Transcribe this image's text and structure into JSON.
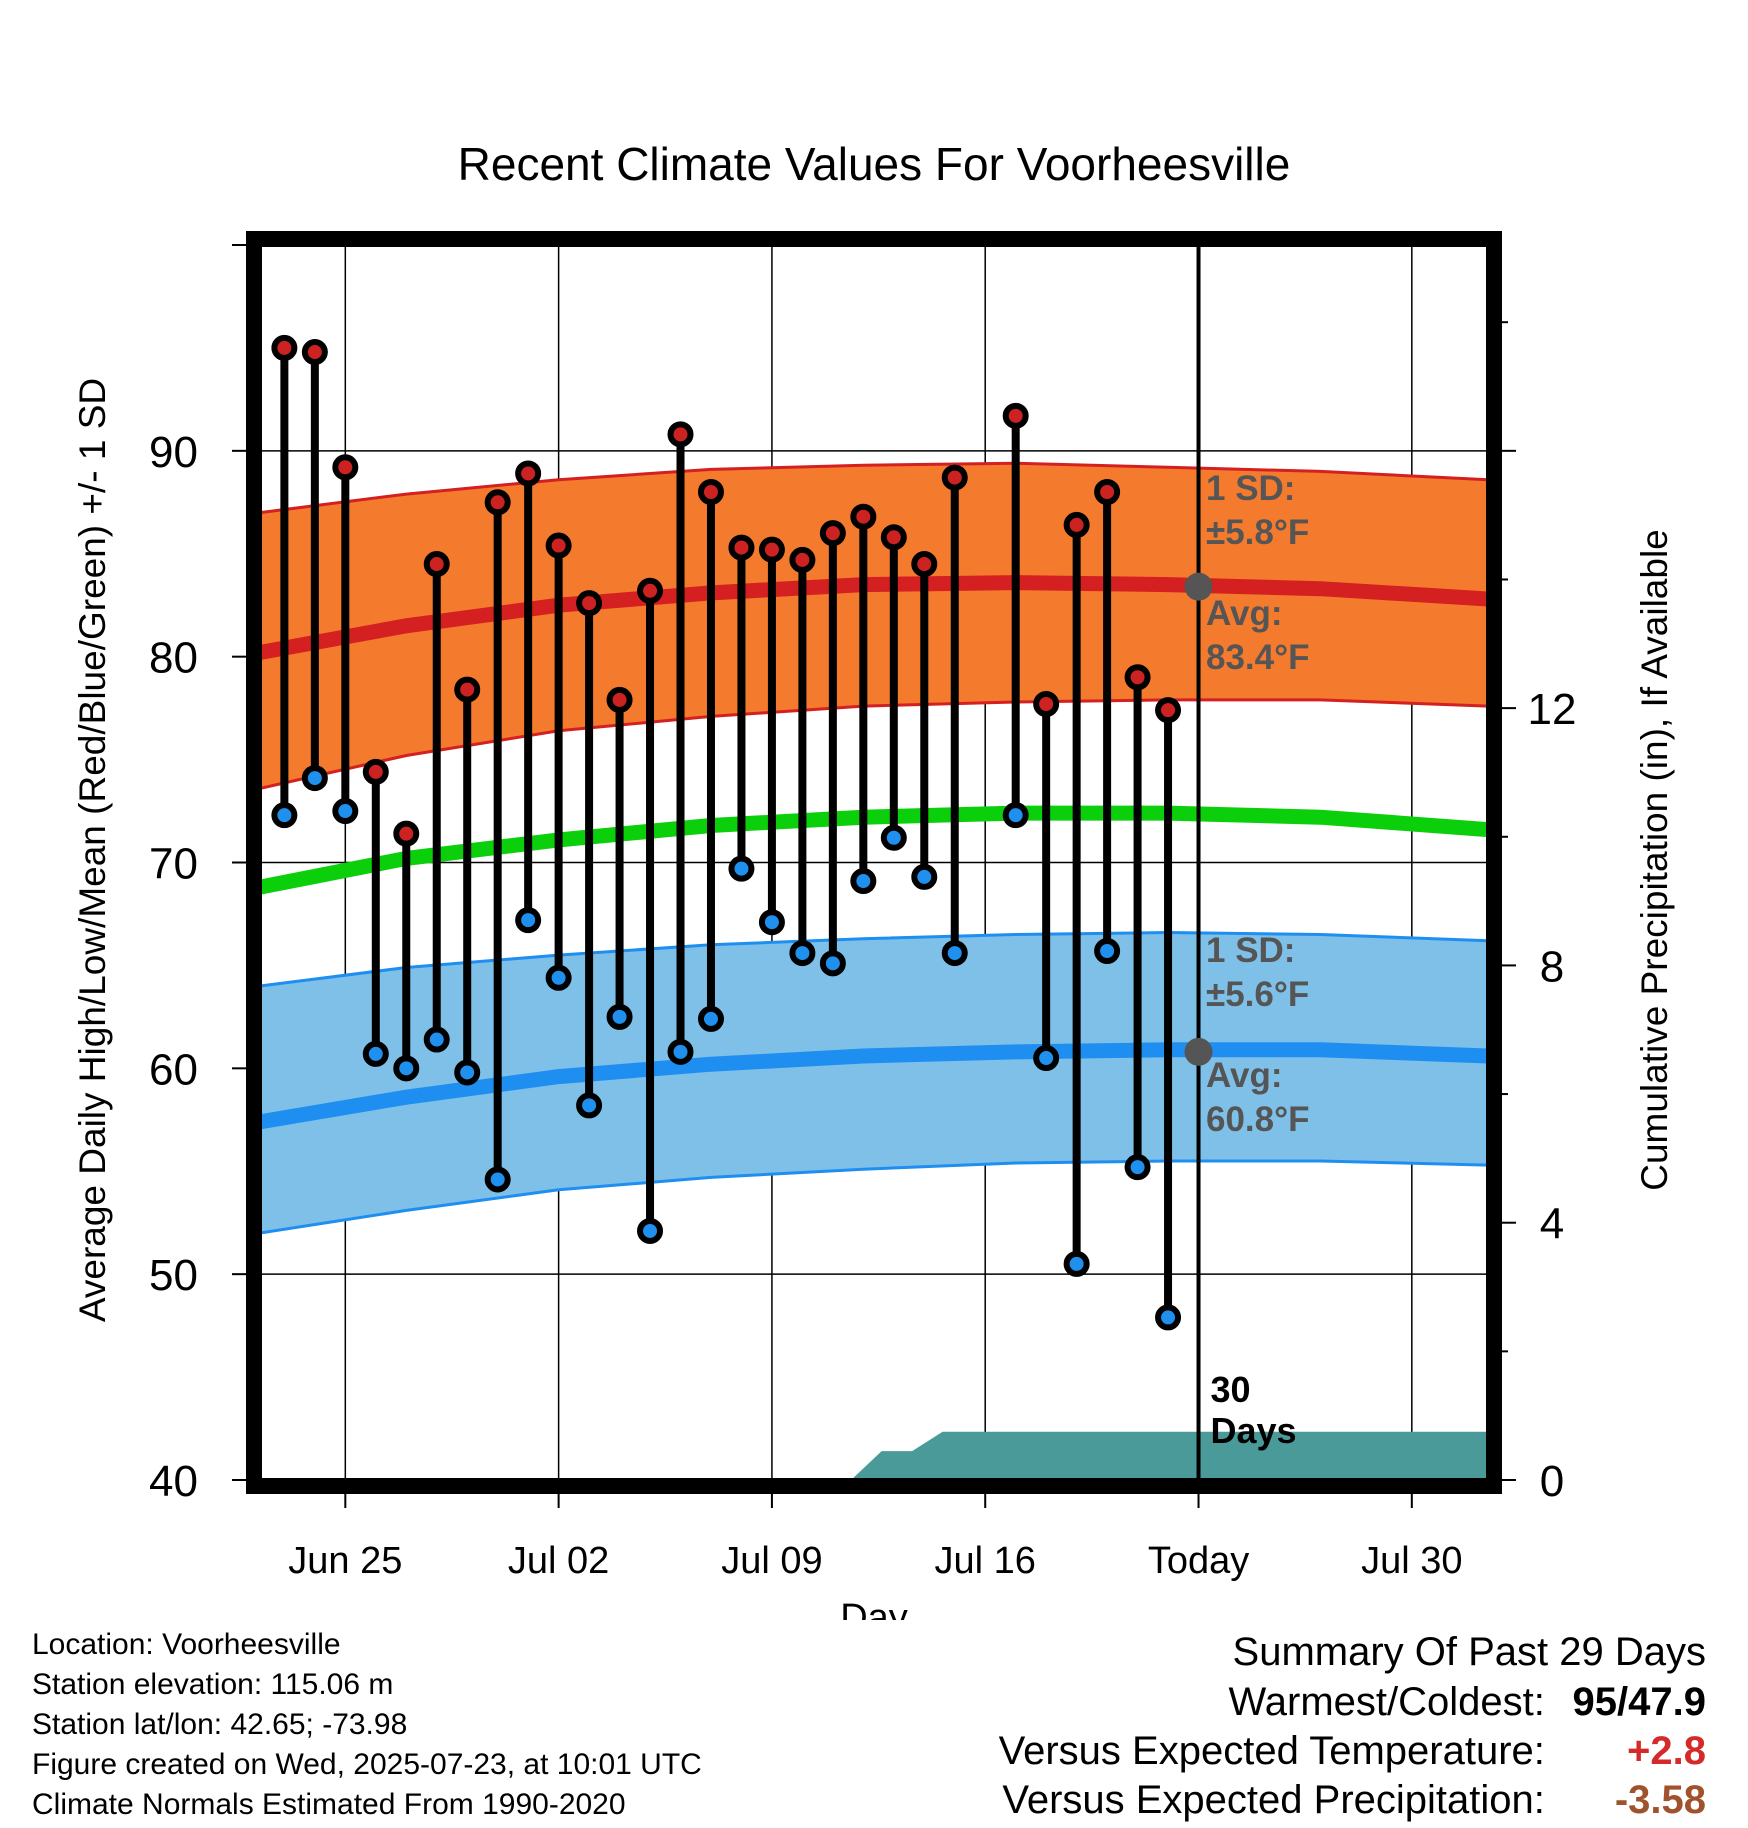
{
  "chart_data": {
    "type": "line",
    "title": "Recent Climate Values For Voorheesville",
    "xlabel": "Day",
    "ylabel": "Average Daily High/Low/Mean (Red/Blue/Green) +/- 1 SD",
    "y2label": "Cumulative Precipitation (in), If Available",
    "ylim": [
      40,
      100
    ],
    "y2lim": [
      0,
      19.2
    ],
    "yticks": [
      "40",
      "50",
      "60",
      "70",
      "80",
      "90"
    ],
    "y2ticks": [
      "0",
      "4",
      "8",
      "12"
    ],
    "xticks": [
      {
        "day": 3,
        "label": "Jun 25"
      },
      {
        "day": 10,
        "label": "Jul 02"
      },
      {
        "day": 17,
        "label": "Jul 09"
      },
      {
        "day": 24,
        "label": "Jul 16"
      },
      {
        "day": 31,
        "label": "Today"
      },
      {
        "day": 38,
        "label": "Jul 30"
      }
    ],
    "xlim": [
      0.2,
      40.5
    ],
    "today_day": 31,
    "today_label": "30 Days",
    "observed": {
      "days": [
        1,
        2,
        3,
        4,
        5,
        6,
        7,
        8,
        9,
        10,
        11,
        12,
        13,
        14,
        15,
        16,
        17,
        18,
        19,
        20,
        21,
        22,
        23,
        24,
        25,
        26,
        27,
        28,
        29,
        30
      ],
      "high": [
        95,
        94.8,
        89.2,
        74.4,
        71.4,
        84.5,
        78.4,
        87.5,
        88.9,
        85.4,
        82.6,
        77.9,
        83.2,
        90.8,
        88,
        85.3,
        85.2,
        84.7,
        86,
        86.8,
        85.8,
        84.5,
        88.7,
        null,
        91.7,
        77.7,
        86.4,
        88,
        79,
        77.4
      ],
      "low": [
        72.3,
        74.1,
        72.5,
        60.7,
        60,
        61.4,
        59.8,
        54.6,
        67.2,
        64.4,
        58.2,
        62.5,
        52.1,
        60.8,
        62.4,
        69.7,
        67.1,
        65.6,
        65.1,
        69.1,
        71.2,
        69.3,
        65.6,
        null,
        72.3,
        60.5,
        50.5,
        65.7,
        55.2,
        47.9
      ]
    },
    "normals": {
      "days": [
        0.2,
        5,
        10,
        15,
        20,
        25,
        30,
        35,
        40.5
      ],
      "high_mean": [
        80.2,
        81.5,
        82.5,
        83.1,
        83.5,
        83.6,
        83.5,
        83.3,
        82.8
      ],
      "high_upper": [
        87.0,
        87.9,
        88.6,
        89.1,
        89.3,
        89.4,
        89.2,
        89.0,
        88.6
      ],
      "high_lower": [
        73.6,
        75.2,
        76.4,
        77.1,
        77.6,
        77.8,
        77.9,
        77.9,
        77.6
      ],
      "mean": [
        68.8,
        70.2,
        71.1,
        71.8,
        72.2,
        72.4,
        72.4,
        72.2,
        71.6
      ],
      "low_mean": [
        57.4,
        58.6,
        59.6,
        60.2,
        60.6,
        60.8,
        60.9,
        60.9,
        60.6
      ],
      "low_upper": [
        64.0,
        64.9,
        65.5,
        66.0,
        66.3,
        66.5,
        66.6,
        66.5,
        66.2
      ],
      "low_lower": [
        52.0,
        53.1,
        54.1,
        54.7,
        55.1,
        55.4,
        55.5,
        55.5,
        55.3
      ]
    },
    "precipitation": {
      "days": [
        19.6,
        20.6,
        21.6,
        22.6,
        40.5
      ],
      "cumulative": [
        0,
        0.45,
        0.45,
        0.75,
        0.75
      ]
    },
    "annotations": {
      "high_sd": "1 SD: ±5.8°F",
      "high_avg": "Avg: 83.4°F",
      "low_sd": "1 SD: ±5.6°F",
      "low_avg": "Avg: 60.8°F",
      "high_avg_value": 83.4,
      "low_avg_value": 60.8
    },
    "colors": {
      "high_band": "#f47a2e",
      "high_line": "#d42020",
      "low_band": "#7fc0e8",
      "low_line": "#1e8ff0",
      "mean_line": "#0ccf0c",
      "precip": "#4a9a9a",
      "high_marker": "#cc2222",
      "low_marker": "#2090ee",
      "annotation": "#555555"
    },
    "grid": true
  },
  "footer": {
    "location": "Location: Voorheesville",
    "elevation": "Station elevation: 115.06 m",
    "latlon": "Station lat/lon: 42.65; -73.98",
    "created": "Figure created on Wed, 2025-07-23, at 10:01 UTC",
    "normals": "Climate Normals Estimated From 1990-2020"
  },
  "summary": {
    "heading": "Summary Of Past 29 Days",
    "warmest_label": "Warmest/Coldest:",
    "warmest_value": "95/47.9",
    "temp_label": "Versus Expected Temperature:",
    "temp_value": "+2.8",
    "temp_color": "#d42a2a",
    "precip_label": "Versus Expected Precipitation:",
    "precip_value": "-3.58",
    "precip_color": "#a0522d"
  }
}
